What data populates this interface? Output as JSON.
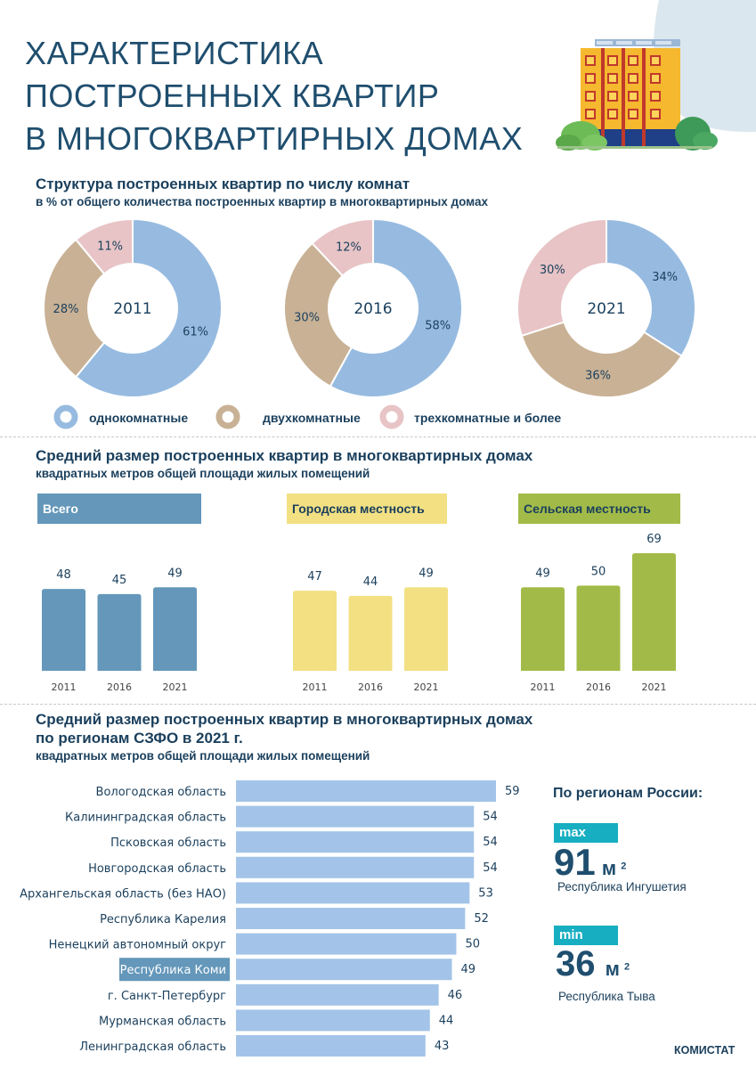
{
  "header": {
    "title_lines": [
      "ХАРАКТЕРИСТИКА",
      "ПОСТРОЕННЫХ КВАРТИР",
      "В МНОГОКВАРТИРНЫХ ДОМАХ"
    ]
  },
  "section1": {
    "title": "Структура построенных квартир по числу комнат",
    "subtitle": "в % от общего количества построенных квартир в многоквартирных домах"
  },
  "section2": {
    "title": "Средний размер построенных квартир в многоквартирных домах",
    "subtitle": "квадратных метров общей площади жилых помещений"
  },
  "section3": {
    "title_line1": "Средний размер  построенных квартир в многоквартирных домах",
    "title_line2": "по регионам СЗФО в 2021 г.",
    "subtitle": "квадратных метров общей площади жилых помещений"
  },
  "russia": {
    "title": "По регионам России:",
    "max_label": "max",
    "max_value": "91",
    "max_unit": "м",
    "max_sup": "2",
    "max_region": "Республика Ингушетия",
    "min_label": "min",
    "min_value": "36",
    "min_unit": "м",
    "min_sup": "2",
    "min_region": "Республика Тыва"
  },
  "footer": {
    "source": "КОМИСТАТ"
  },
  "colors": {
    "one_room": "#97bbe0",
    "two_room": "#c8b195",
    "three_room": "#e8c4c6",
    "total": "#6497ba",
    "urban": "#f2e083",
    "rural": "#a2bb48",
    "region_bar": "#a3c4e8",
    "highlight": "#6497ba",
    "teal": "#17aec1"
  },
  "chart_data": [
    {
      "type": "pie",
      "title": "2011",
      "series_labels": [
        "однокомнатные",
        "двухкомнатные",
        "трехкомнатные  и более"
      ],
      "values": [
        61,
        28,
        11
      ],
      "labels": [
        "61%",
        "28%",
        "11%"
      ]
    },
    {
      "type": "pie",
      "title": "2016",
      "series_labels": [
        "однокомнатные",
        "двухкомнатные",
        "трехкомнатные  и более"
      ],
      "values": [
        58,
        30,
        12
      ],
      "labels": [
        "58%",
        "30%",
        "12%"
      ]
    },
    {
      "type": "pie",
      "title": "2021",
      "series_labels": [
        "однокомнатные",
        "двухкомнатные",
        "трехкомнатные  и более"
      ],
      "values": [
        34,
        36,
        30
      ],
      "labels": [
        "34%",
        "36%",
        "30%"
      ]
    },
    {
      "type": "bar",
      "title": "Всего",
      "categories": [
        "2011",
        "2016",
        "2021"
      ],
      "values": [
        48,
        45,
        49
      ],
      "ylim": [
        0,
        70
      ]
    },
    {
      "type": "bar",
      "title": "Городская местность",
      "categories": [
        "2011",
        "2016",
        "2021"
      ],
      "values": [
        47,
        44,
        49
      ],
      "ylim": [
        0,
        70
      ]
    },
    {
      "type": "bar",
      "title": "Сельская местность",
      "categories": [
        "2011",
        "2016",
        "2021"
      ],
      "values": [
        49,
        50,
        69
      ],
      "ylim": [
        0,
        70
      ]
    },
    {
      "type": "bar",
      "orientation": "horizontal",
      "title": "Средний размер построенных квартир по регионам СЗФО в 2021 г.",
      "categories": [
        "Вологодская область",
        "Калининградская область",
        "Псковская область",
        "Новгородская область",
        "Архангельская область (без НАО)",
        "Республика Карелия",
        "Ненецкий автономный округ",
        "Республика Коми",
        "г. Санкт-Петербург",
        "Мурманская область",
        "Ленинградская область"
      ],
      "values": [
        59,
        54,
        54,
        54,
        53,
        52,
        50,
        49,
        46,
        44,
        43
      ],
      "highlight": "Республика Коми",
      "xlim": [
        0,
        59
      ]
    }
  ]
}
